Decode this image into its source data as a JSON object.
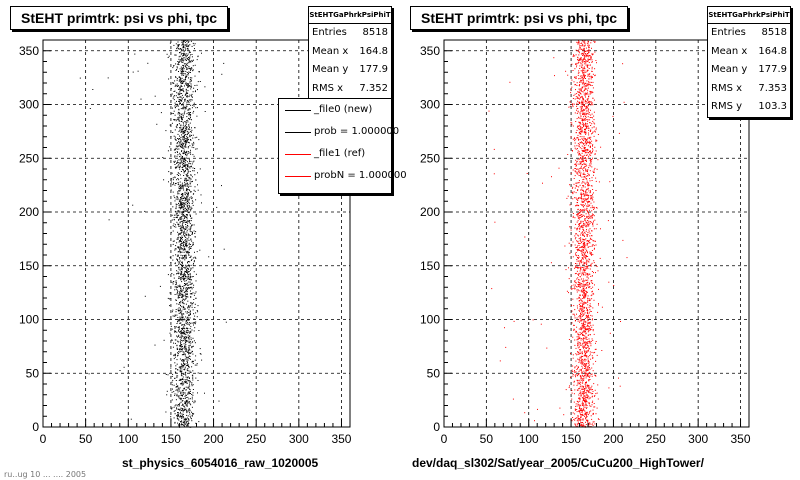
{
  "chart_data": [
    {
      "type": "scatter",
      "title": "StEHT primtrk: psi vs phi, tpc",
      "xlabel": "st_physics_6054016_raw_1020005",
      "ylabel": "",
      "xlim": [
        0,
        360
      ],
      "ylim": [
        0,
        360
      ],
      "xticks": [
        0,
        50,
        100,
        150,
        200,
        250,
        300,
        350
      ],
      "yticks": [
        0,
        50,
        100,
        150,
        200,
        250,
        300,
        350
      ],
      "grid": true,
      "color": "#000000",
      "distribution": {
        "x_center": 164.8,
        "x_rms": 7.352,
        "y_mean": 177.9,
        "entries": 8518
      },
      "stats": {
        "name": "StEHTGaPhrkPsiPhiT",
        "rows": [
          {
            "label": "Entries",
            "value": "8518"
          },
          {
            "label": "Mean x",
            "value": "164.8"
          },
          {
            "label": "Mean y",
            "value": "177.9"
          },
          {
            "label": "RMS x",
            "value": "7.352"
          }
        ]
      },
      "legend": [
        {
          "label": "_file0 (new)",
          "color": "#000000"
        },
        {
          "label": "prob = 1.000000",
          "color": "#000000"
        },
        {
          "label": "_file1 (ref)",
          "color": "#ff0000"
        },
        {
          "label": "probN = 1.000000",
          "color": "#ff0000"
        }
      ]
    },
    {
      "type": "scatter",
      "title": "StEHT primtrk: psi vs phi, tpc",
      "xlabel": "dev/daq_sl302/Sat/year_2005/CuCu200_HighTower/",
      "ylabel": "",
      "xlim": [
        0,
        360
      ],
      "ylim": [
        0,
        360
      ],
      "xticks": [
        0,
        50,
        100,
        150,
        200,
        250,
        300,
        350
      ],
      "yticks": [
        0,
        50,
        100,
        150,
        200,
        250,
        300,
        350
      ],
      "grid": true,
      "color": "#ff0000",
      "distribution": {
        "x_center": 164.8,
        "x_rms": 7.353,
        "y_mean": 177.9,
        "entries": 8518
      },
      "stats": {
        "name": "StEHTGaPhrkPsiPhiT",
        "rows": [
          {
            "label": "Entries",
            "value": "8518"
          },
          {
            "label": "Mean x",
            "value": "164.8"
          },
          {
            "label": "Mean y",
            "value": "177.9"
          },
          {
            "label": "RMS x",
            "value": "7.353"
          },
          {
            "label": "RMS y",
            "value": "103.3"
          }
        ]
      }
    }
  ],
  "footer_text": "ru..ug 10 ... .... 2005"
}
